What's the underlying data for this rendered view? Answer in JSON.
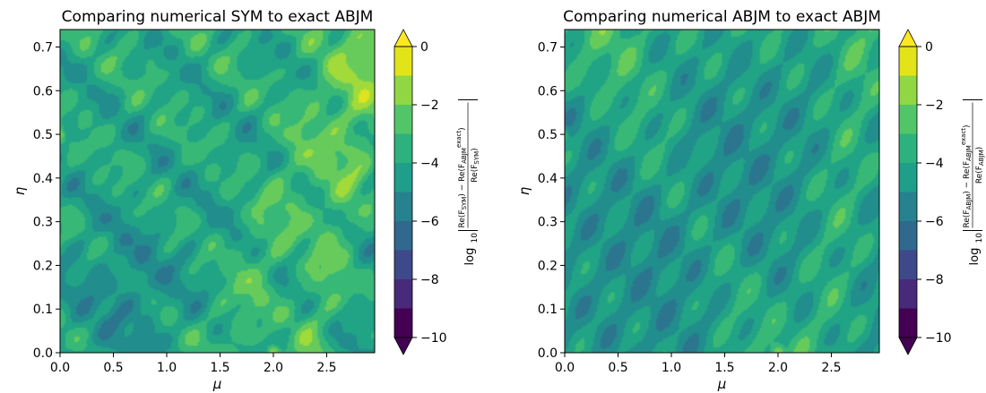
{
  "chart_data": [
    {
      "type": "heatmap",
      "title": "Comparing numerical SYM to exact ABJM",
      "xlabel": "μ",
      "ylabel": "η",
      "xlim": [
        0.0,
        2.95
      ],
      "ylim": [
        0.0,
        0.74
      ],
      "xticks": [
        "0.0",
        "0.5",
        "1.0",
        "1.5",
        "2.0",
        "2.5"
      ],
      "yticks": [
        "0.0",
        "0.1",
        "0.2",
        "0.3",
        "0.4",
        "0.5",
        "0.6",
        "0.7"
      ],
      "colorbar": {
        "label": "log₁₀|(Re(F_SYM) − Re(F_ABJM^exact)) / Re(F_SYM)|",
        "label_parts": {
          "lead": "log",
          "base": "10",
          "num": "Re(F",
          "num_sub": "SYM",
          "num_mid": ") − Re(F",
          "num_sub2": "ABJM",
          "num_sup2": "exact",
          "num_end": ")",
          "den": "Re(F",
          "den_sub": "SYM",
          "den_end": ")"
        },
        "min": -10,
        "max": 0,
        "ticks": [
          "0",
          "−2",
          "−4",
          "−6",
          "−8",
          "−10"
        ],
        "extend": "both"
      }
    },
    {
      "type": "heatmap",
      "title": "Comparing numerical ABJM to exact ABJM",
      "xlabel": "μ",
      "ylabel": "η",
      "xlim": [
        0.0,
        2.95
      ],
      "ylim": [
        0.0,
        0.74
      ],
      "xticks": [
        "0.0",
        "0.5",
        "1.0",
        "1.5",
        "2.0",
        "2.5"
      ],
      "yticks": [
        "0.0",
        "0.1",
        "0.2",
        "0.3",
        "0.4",
        "0.5",
        "0.6",
        "0.7"
      ],
      "colorbar": {
        "label": "log₁₀|(Re(F_ABJM) − Re(F_ABJM^exact)) / Re(F_ABJM)|",
        "label_parts": {
          "lead": "log",
          "base": "10",
          "num": "Re(F",
          "num_sub": "ABJM",
          "num_mid": ") − Re(F",
          "num_sub2": "ABJM",
          "num_sup2": "exact",
          "num_end": ")",
          "den": "Re(F",
          "den_sub": "ABJM",
          "den_end": ")"
        },
        "min": -10,
        "max": 0,
        "ticks": [
          "0",
          "−2",
          "−4",
          "−6",
          "−8",
          "−10"
        ],
        "extend": "both"
      }
    }
  ],
  "colormap": [
    "#481a6c",
    "#472f7d",
    "#414487",
    "#39568c",
    "#31688e",
    "#2a788e",
    "#23888e",
    "#1f988b",
    "#22a884",
    "#35b779",
    "#54c568",
    "#7ad151",
    "#a5db36",
    "#d2e21b",
    "#fde725"
  ],
  "colorbar_bands": [
    "#e2e418",
    "#90d743",
    "#52c569",
    "#2db27d",
    "#1f9e89",
    "#26828e",
    "#31688e",
    "#3e4989",
    "#472a7a",
    "#440154"
  ],
  "extend_colors": {
    "top": "#fde725",
    "bottom": "#440154"
  }
}
